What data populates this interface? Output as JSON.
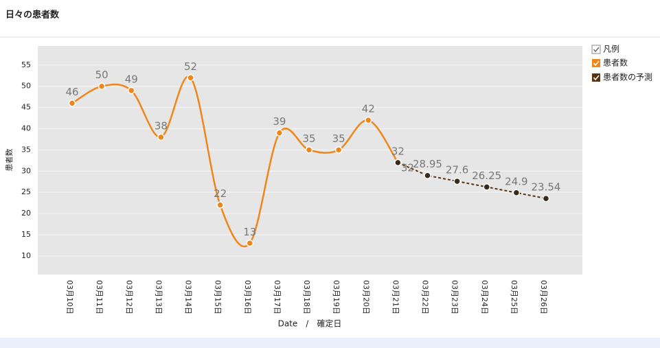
{
  "header": {
    "title": "日々の患者数"
  },
  "chart_data": {
    "type": "line",
    "y_label": "患者数",
    "x_label": "Date　/　確定日",
    "legend_title": "凡例",
    "categories": [
      "03月10日",
      "03月11日",
      "03月12日",
      "03月13日",
      "03月14日",
      "03月15日",
      "03月16日",
      "03月17日",
      "03月18日",
      "03月19日",
      "03月20日",
      "03月21日",
      "03月22日",
      "03月23日",
      "03月24日",
      "03月25日",
      "03月26日"
    ],
    "series": [
      {
        "name": "患者数",
        "color": "#f0851a",
        "dashed": false,
        "values": [
          46,
          50,
          49,
          38,
          52,
          22,
          13,
          39,
          35,
          35,
          42,
          32,
          null,
          null,
          null,
          null,
          null
        ]
      },
      {
        "name": "患者数の予測",
        "color": "#5a3210",
        "dashed": true,
        "values": [
          null,
          null,
          null,
          null,
          null,
          null,
          null,
          null,
          null,
          null,
          null,
          32,
          28.95,
          27.6,
          26.25,
          24.9,
          23.54
        ]
      }
    ],
    "ylim": [
      5.6,
      59.5
    ],
    "yticks": [
      10,
      15,
      20,
      25,
      30,
      35,
      40,
      45,
      50,
      55
    ],
    "grid": true
  }
}
